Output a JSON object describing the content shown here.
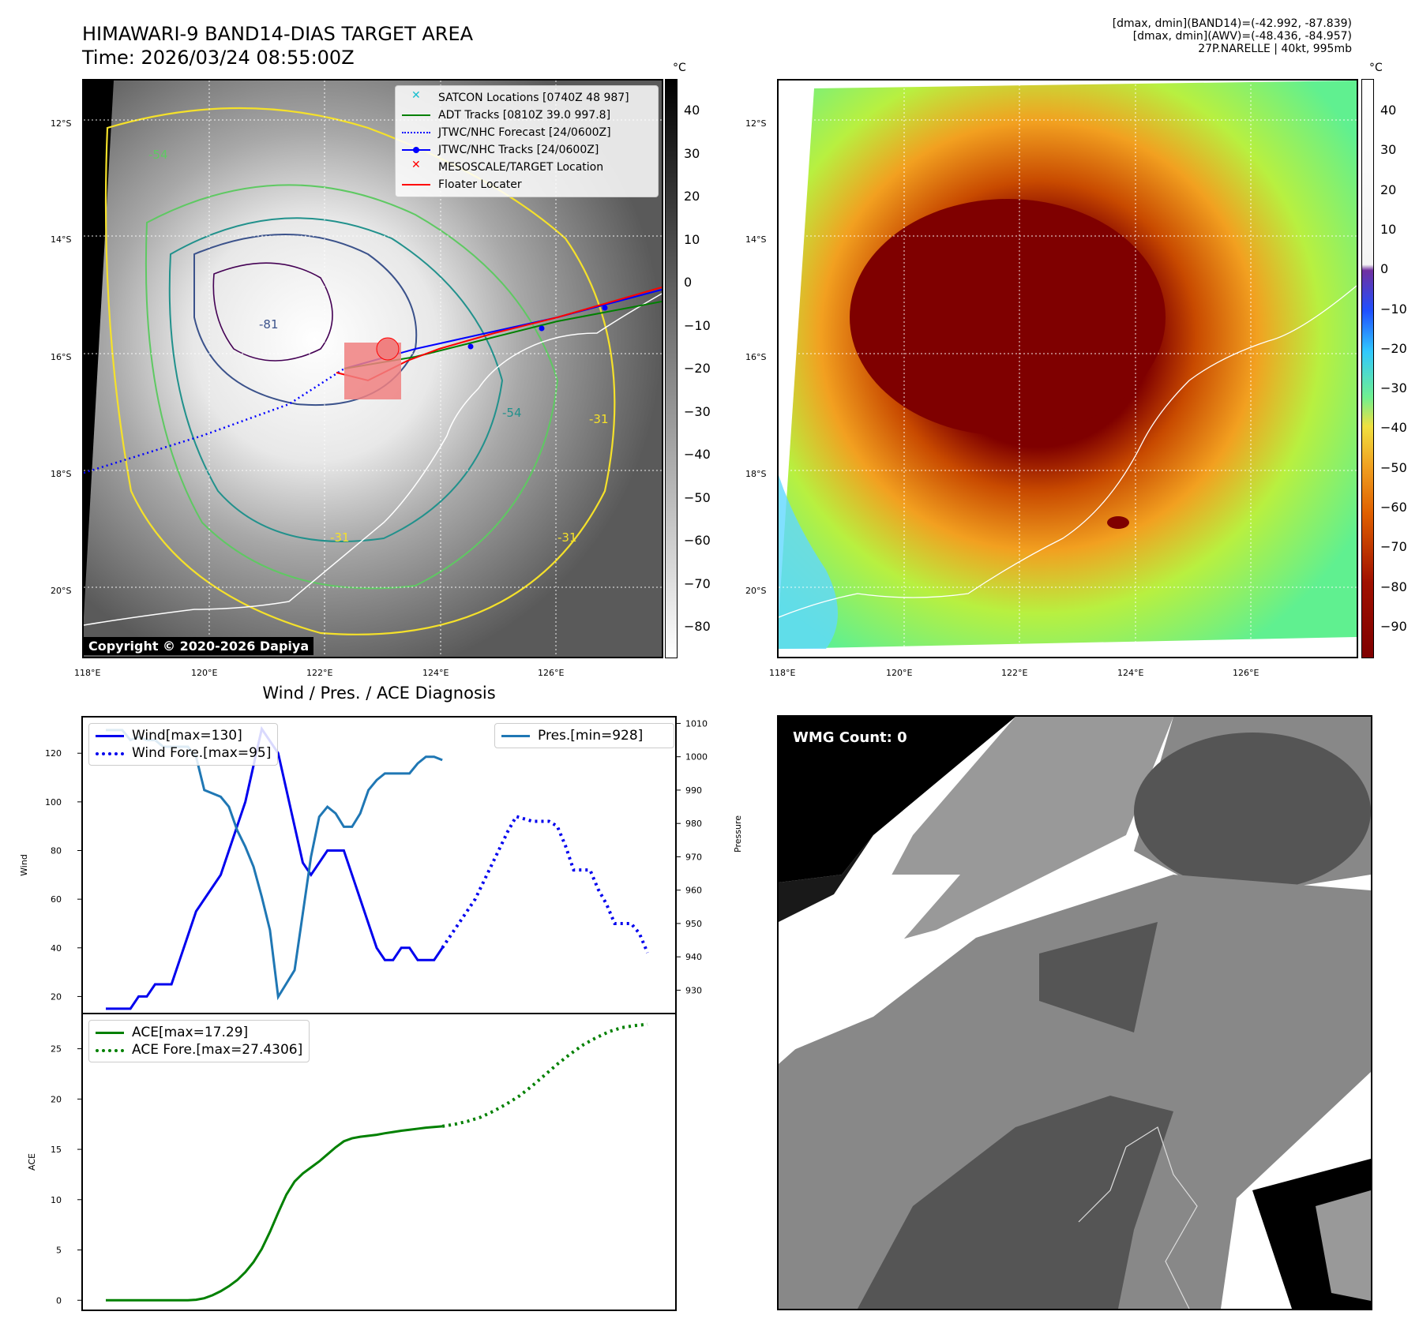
{
  "header": {
    "title_line1": "HIMAWARI-9 BAND14-DIAS TARGET AREA",
    "title_line2": "Time: 2026/03/24 08:55:00Z",
    "right_line1": "[dmax, dmin](BAND14)=(-42.992, -87.839)",
    "right_line2": "[dmax, dmin](AWV)=(-48.436, -84.957)",
    "right_line3": "27P.NARELLE | 40kt, 995mb"
  },
  "map_axes": {
    "lat_labels": [
      "12°S",
      "14°S",
      "16°S",
      "18°S",
      "20°S"
    ],
    "lon_labels": [
      "118°E",
      "120°E",
      "122°E",
      "124°E",
      "126°E"
    ]
  },
  "ir_panel": {
    "colorbar_unit": "°C",
    "colorbar_ticks": [
      "40",
      "30",
      "20",
      "10",
      "0",
      "−10",
      "−20",
      "−30",
      "−40",
      "−50",
      "−60",
      "−70",
      "−80"
    ],
    "copyright": "Copyright © 2020-2026 Dapiya",
    "contour_labels": [
      "-54",
      "-54",
      "-31",
      "-31",
      "-31",
      "-81"
    ],
    "legend": [
      {
        "label": "SATCON Locations [0740Z 48 987]",
        "color": "#17becf"
      },
      {
        "label": "ADT Tracks [0810Z 39.0 997.8]",
        "color": "#008000"
      },
      {
        "label": "JTWC/NHC Forecast [24/0600Z]",
        "color": "#0000ff"
      },
      {
        "label": "JTWC/NHC Tracks [24/0600Z]",
        "color": "#0000ff"
      },
      {
        "label": "MESOSCALE/TARGET Location",
        "color": "#ff0000"
      },
      {
        "label": "Floater Locater",
        "color": "#ff0000"
      }
    ]
  },
  "awv_panel": {
    "colorbar_unit": "°C",
    "colorbar_ticks": [
      "40",
      "30",
      "20",
      "10",
      "0",
      "−10",
      "−20",
      "−30",
      "−40",
      "−50",
      "−60",
      "−70",
      "−80",
      "−90"
    ]
  },
  "wmg_panel": {
    "label": "WMG Count: 0"
  },
  "chart_data": [
    {
      "type": "line",
      "title": "Wind / Pres. / ACE Diagnosis",
      "ylabel": "Wind",
      "ylabel_right": "Pressure",
      "ylim": [
        13,
        135
      ],
      "ylim_right": [
        923,
        1012
      ],
      "yticks": [
        20,
        40,
        60,
        80,
        100,
        120
      ],
      "yticks_right": [
        930,
        940,
        950,
        960,
        970,
        980,
        990,
        1000,
        1010
      ],
      "series": [
        {
          "name": "Wind[max=130]",
          "color": "#0000ee",
          "style": "solid",
          "values": [
            15,
            15,
            15,
            15,
            20,
            20,
            25,
            25,
            25,
            35,
            45,
            55,
            60,
            65,
            70,
            80,
            90,
            100,
            115,
            130,
            125,
            120,
            105,
            90,
            75,
            70,
            75,
            80,
            80,
            80,
            70,
            60,
            50,
            40,
            35,
            35,
            40,
            40,
            35,
            35,
            35,
            40
          ]
        },
        {
          "name": "Wind Fore.[max=95]",
          "color": "#0000ee",
          "style": "dotted",
          "values": [
            40,
            45,
            50,
            55,
            60,
            67,
            74,
            81,
            88,
            94,
            93,
            92,
            92,
            92,
            90,
            82,
            72,
            72,
            72,
            64,
            58,
            50,
            50,
            50,
            46,
            38
          ]
        },
        {
          "name": "Pres.[min=928]",
          "color": "#1f77b4",
          "style": "solid",
          "values": [
            1008,
            1008,
            1008,
            1005,
            1006,
            1005,
            1005,
            1003,
            1003,
            1003,
            1003,
            1000,
            990,
            989,
            988,
            985,
            978,
            973,
            967,
            958,
            948,
            928,
            932,
            936,
            953,
            970,
            982,
            985,
            983,
            979,
            979,
            983,
            990,
            993,
            995,
            995,
            995,
            995,
            998,
            1000,
            1000,
            999
          ]
        }
      ]
    },
    {
      "type": "line",
      "ylabel": "ACE",
      "ylim": [
        -1,
        28.5
      ],
      "yticks": [
        0,
        5,
        10,
        15,
        20,
        25
      ],
      "series": [
        {
          "name": "ACE[max=17.29]",
          "color": "#008000",
          "style": "solid",
          "values": [
            0,
            0,
            0,
            0,
            0,
            0,
            0,
            0,
            0,
            0,
            0,
            0.05,
            0.2,
            0.5,
            0.9,
            1.4,
            2.0,
            2.8,
            3.8,
            5.1,
            6.8,
            8.7,
            10.5,
            11.8,
            12.6,
            13.2,
            13.8,
            14.5,
            15.2,
            15.8,
            16.1,
            16.25,
            16.35,
            16.45,
            16.6,
            16.72,
            16.85,
            16.95,
            17.05,
            17.15,
            17.22,
            17.29
          ]
        },
        {
          "name": "ACE Fore.[max=27.4306]",
          "color": "#008000",
          "style": "dotted",
          "values": [
            17.29,
            17.5,
            17.8,
            18.2,
            18.8,
            19.5,
            20.3,
            21.3,
            22.4,
            23.5,
            24.5,
            25.4,
            26.1,
            26.7,
            27.1,
            27.3,
            27.43
          ]
        }
      ]
    }
  ]
}
